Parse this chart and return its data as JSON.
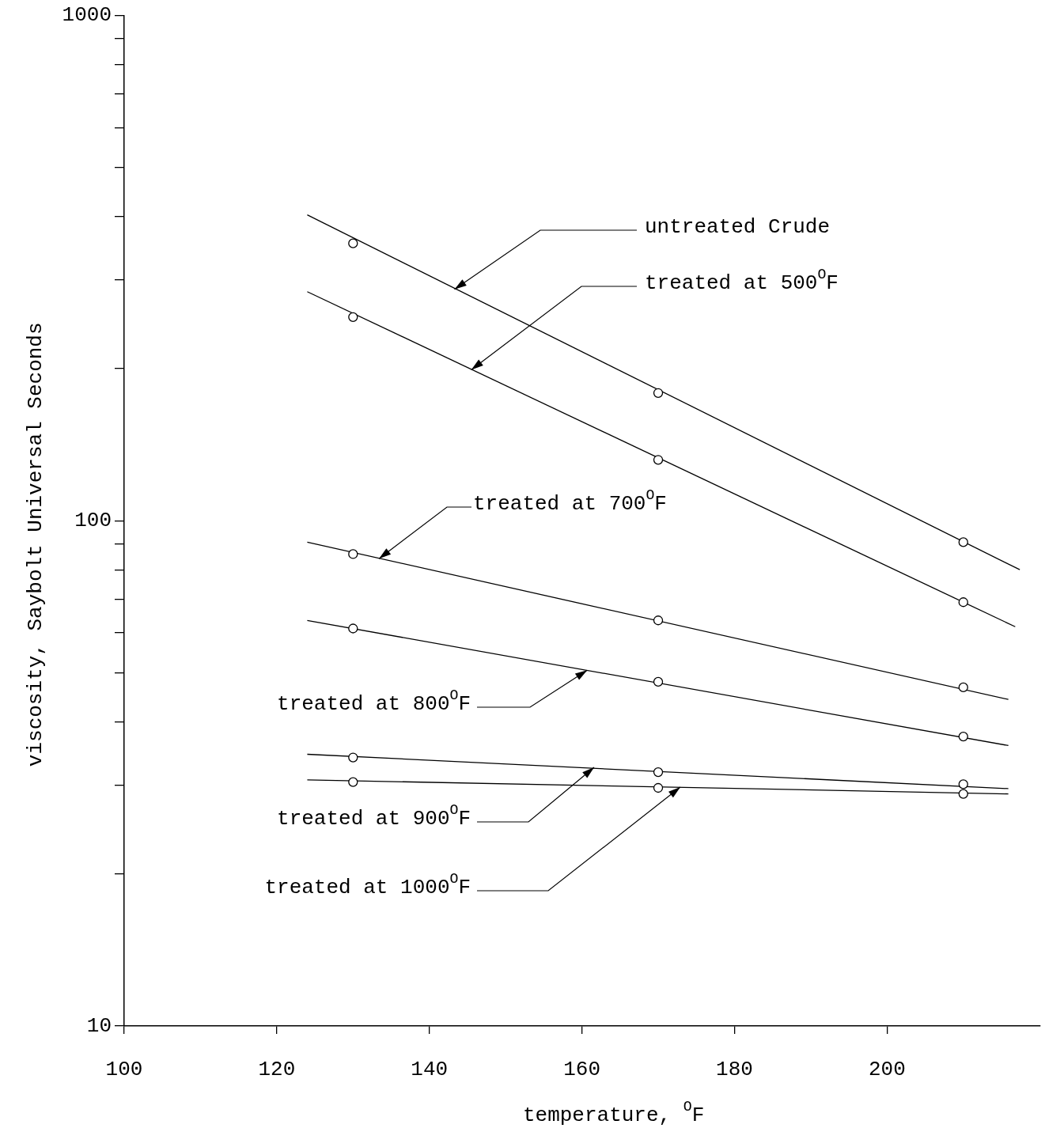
{
  "chart_data": {
    "type": "scatter",
    "xlabel": "temperature, $^{O}$F",
    "ylabel": "viscosity, Saybolt Universal Seconds",
    "x": [
      130,
      170,
      210
    ],
    "xlim": [
      100,
      220
    ],
    "xticks": [
      100,
      120,
      140,
      160,
      180,
      200
    ],
    "ylim": [
      10,
      1000
    ],
    "yticks": [
      10,
      {
        "value": 20,
        "label": null
      },
      {
        "value": 30,
        "label": null
      },
      {
        "value": 40,
        "label": null
      },
      {
        "value": 50,
        "label": null
      },
      {
        "value": 60,
        "label": null
      },
      {
        "value": 70,
        "label": null
      },
      {
        "value": 80,
        "label": null
      },
      {
        "value": 90,
        "label": null
      },
      100,
      {
        "value": 200,
        "label": null
      },
      {
        "value": 300,
        "label": null
      },
      {
        "value": 400,
        "label": null
      },
      {
        "value": 500,
        "label": null
      },
      {
        "value": 600,
        "label": null
      },
      {
        "value": 700,
        "label": null
      },
      {
        "value": 800,
        "label": null
      },
      {
        "value": 900,
        "label": null
      },
      1000
    ],
    "log": "y",
    "grid": false,
    "legend": false,
    "marker": "circle",
    "series": [
      {
        "color": "#000000",
        "values": [
          354,
          179,
          90.7
        ]
      },
      {
        "color": "#000000",
        "values": [
          253,
          132,
          69
        ]
      },
      {
        "color": "#000000",
        "values": [
          85.9,
          63.5,
          46.8
        ]
      },
      {
        "color": "#000000",
        "values": [
          61.2,
          48,
          37.4
        ]
      },
      {
        "color": "#000000",
        "values": [
          34,
          31.8,
          30.1
        ]
      },
      {
        "color": "#000000",
        "values": [
          30.4,
          29.6,
          28.8
        ]
      },
      {
        "type": "line",
        "marker": "none",
        "line_style": "solid",
        "color": "#000000",
        "x": [
          124,
          217.4
        ],
        "values": [
          403,
          80
        ]
      },
      {
        "type": "line",
        "marker": "none",
        "line_style": "solid",
        "color": "#000000",
        "x": [
          124,
          216.8
        ],
        "values": [
          284,
          61.7
        ]
      },
      {
        "type": "line",
        "marker": "none",
        "line_style": "solid",
        "color": "#000000",
        "x": [
          124,
          215.9
        ],
        "values": [
          90.7,
          44.3
        ]
      },
      {
        "type": "line",
        "marker": "none",
        "line_style": "solid",
        "color": "#000000",
        "x": [
          124,
          215.9
        ],
        "values": [
          63.5,
          35.9
        ]
      },
      {
        "type": "line",
        "marker": "none",
        "line_style": "solid",
        "color": "#000000",
        "x": [
          124,
          215.9
        ],
        "values": [
          34.5,
          29.5
        ]
      },
      {
        "type": "line",
        "marker": "none",
        "line_style": "solid",
        "color": "#000000",
        "x": [
          124,
          215.9
        ],
        "values": [
          30.7,
          28.8
        ]
      }
    ],
    "annotations": [
      {
        "text": "untreated Crude",
        "x": 143.3,
        "y": 287
      },
      {
        "text": "treated at 500$^{O}$F",
        "x": 145.5,
        "y": 199
      },
      {
        "text": "treated at 700$^{O}$F",
        "x": 133.4,
        "y": 84.1
      },
      {
        "text": "treated at 800$^{O}$F",
        "x": 160.7,
        "y": 50.6
      },
      {
        "text": "treated at 900$^{O}$F",
        "x": 161.6,
        "y": 32.5
      },
      {
        "text": "treated at 1000$^{O}$F",
        "x": 172.9,
        "y": 29.7
      }
    ]
  }
}
